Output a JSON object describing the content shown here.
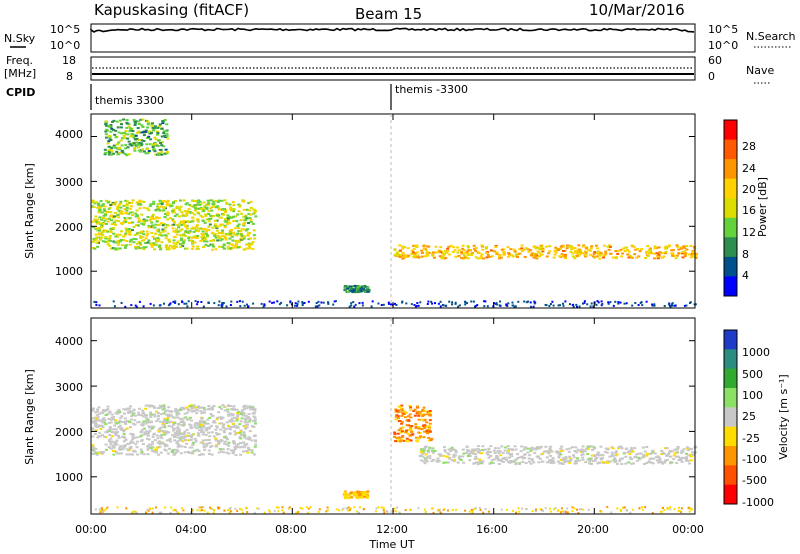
{
  "header": {
    "station": "Kapuskasing (fitACF)",
    "beam": "Beam 15",
    "date": "10/Mar/2016"
  },
  "top_panels": {
    "nsky_label": "N.Sky",
    "nsearch_label": "N.Search",
    "left_ticks": [
      "10^5",
      "10^0"
    ],
    "right_ticks": [
      "10^5",
      "10^0"
    ],
    "freq_label_1": "Freq.",
    "freq_label_2": "[MHz]",
    "freq_ticks": [
      "18",
      "8"
    ],
    "nave_label": "Nave",
    "nave_ticks": [
      "60",
      "0"
    ],
    "cpid_label": "CPID",
    "cpid_left": "themis 3300",
    "cpid_right": "themis -3300"
  },
  "power_panel": {
    "ylabel": "Slant Range [km]",
    "yticks": [
      "4000",
      "3000",
      "2000",
      "1000"
    ],
    "colorbar_label": "Power [dB]",
    "colorbar_ticks": [
      "28",
      "24",
      "20",
      "16",
      "12",
      "8",
      "4"
    ],
    "colorbar_colors": [
      "#ff0000",
      "#ff5a00",
      "#ff9600",
      "#ffd200",
      "#dcdc00",
      "#64d23c",
      "#2d8c50",
      "#00508c",
      "#0000ff"
    ]
  },
  "velocity_panel": {
    "ylabel": "Slant Range [km]",
    "yticks": [
      "4000",
      "3000",
      "2000",
      "1000"
    ],
    "colorbar_label": "Velocity [m s⁻¹]",
    "colorbar_ticks": [
      "1000",
      "500",
      "100",
      "25",
      "-25",
      "-100",
      "-500",
      "-1000"
    ],
    "colorbar_colors": [
      "#1e3cc8",
      "#2d8c82",
      "#32aa32",
      "#8ce164",
      "#c8c8c8",
      "#ffdc00",
      "#ff9600",
      "#ff5000",
      "#ff0000"
    ]
  },
  "x_axis": {
    "label": "Time UT",
    "ticks": [
      "00:00",
      "04:00",
      "08:00",
      "12:00",
      "16:00",
      "20:00",
      "00:00"
    ]
  },
  "chart_data": {
    "type": "heatmap",
    "title": "Kapuskasing (fitACF)  Beam 15  10/Mar/2016",
    "xlabel": "Time UT",
    "ylabel": "Slant Range [km]",
    "xlim": [
      "00:00",
      "24:00"
    ],
    "ylim": [
      180,
      4500
    ],
    "panels": [
      {
        "name": "Power",
        "unit": "dB",
        "colorbar_range": [
          0,
          30
        ],
        "features": [
          {
            "from": "00:00",
            "to": "06:30",
            "range_start_km": 1500,
            "range_end_km": 2600,
            "value_db": 14
          },
          {
            "from": "00:30",
            "to": "03:00",
            "range_start_km": 3600,
            "range_end_km": 4400,
            "value_db": 10
          },
          {
            "from": "12:00",
            "to": "24:00",
            "range_start_km": 1300,
            "range_end_km": 1600,
            "value_db": 20
          },
          {
            "from": "10:00",
            "to": "11:00",
            "range_start_km": 550,
            "range_end_km": 700,
            "value_db": 8
          }
        ]
      },
      {
        "name": "Velocity",
        "unit": "m s-1",
        "colorbar_range": [
          -1000,
          1000
        ],
        "features": [
          {
            "from": "00:00",
            "to": "06:30",
            "range_start_km": 1500,
            "range_end_km": 2600,
            "value_ms": 0
          },
          {
            "from": "12:00",
            "to": "13:30",
            "range_start_km": 1800,
            "range_end_km": 2600,
            "value_ms": -500
          },
          {
            "from": "13:00",
            "to": "24:00",
            "range_start_km": 1300,
            "range_end_km": 1700,
            "value_ms": 0
          },
          {
            "from": "10:00",
            "to": "11:00",
            "range_start_km": 550,
            "range_end_km": 700,
            "value_ms": -100
          }
        ]
      }
    ]
  }
}
